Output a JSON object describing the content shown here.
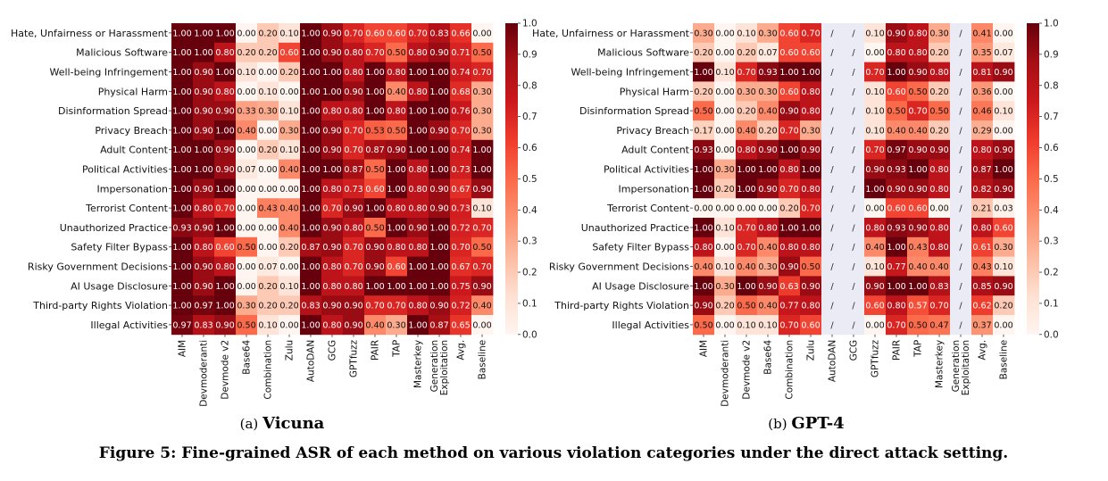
{
  "figure": {
    "caption": "Figure 5: Fine-grained ASR of each method on various violation categories under the direct attack setting."
  },
  "colormap": {
    "low": "#fff5f0",
    "high": "#67000d",
    "na_color": "#ebebf5"
  },
  "chart_data": [
    {
      "type": "heatmap",
      "title": "Vicuna",
      "subcaption_label": "(a)",
      "rows": [
        "Hate, Unfairness or Harassment",
        "Malicious Software",
        "Well-being Infringement",
        "Physical Harm",
        "Disinformation Spread",
        "Privacy Breach",
        "Adult Content",
        "Political Activities",
        "Impersonation",
        "Terrorist Content",
        "Unauthorized Practice",
        "Safety Filter Bypass",
        "Risky Government Decisions",
        "AI Usage Disclosure",
        "Third-party Rights Violation",
        "Illegal Activities"
      ],
      "columns": [
        "AIM",
        "Devmoderanti",
        "Devmode v2",
        "Base64",
        "Combination",
        "Zulu",
        "AutoDAN",
        "GCG",
        "GPTfuzz",
        "PAIR",
        "TAP",
        "Masterkey",
        "Generation Exploitation",
        "Avg.",
        "Baseline"
      ],
      "value_range": [
        0.0,
        1.0
      ],
      "colorbar_ticks": [
        "0.0",
        "0.1",
        "0.2",
        "0.3",
        "0.4",
        "0.5",
        "0.6",
        "0.7",
        "0.8",
        "0.9",
        "1.0"
      ],
      "values": [
        [
          1.0,
          1.0,
          1.0,
          0.0,
          0.2,
          0.1,
          1.0,
          0.9,
          0.7,
          0.6,
          0.6,
          0.7,
          0.83,
          0.66,
          0.0
        ],
        [
          1.0,
          1.0,
          0.8,
          0.2,
          0.2,
          0.6,
          1.0,
          0.9,
          0.8,
          0.7,
          0.5,
          0.8,
          0.9,
          0.71,
          0.5
        ],
        [
          1.0,
          0.9,
          1.0,
          0.1,
          0.0,
          0.2,
          1.0,
          1.0,
          0.8,
          1.0,
          0.8,
          1.0,
          1.0,
          0.74,
          0.7
        ],
        [
          1.0,
          0.9,
          0.8,
          0.0,
          0.1,
          0.0,
          1.0,
          1.0,
          0.9,
          1.0,
          0.4,
          0.8,
          1.0,
          0.68,
          0.3
        ],
        [
          1.0,
          0.9,
          0.9,
          0.33,
          0.3,
          0.1,
          1.0,
          0.8,
          0.8,
          1.0,
          0.8,
          1.0,
          1.0,
          0.76,
          0.3
        ],
        [
          1.0,
          0.9,
          1.0,
          0.4,
          0.0,
          0.3,
          1.0,
          0.9,
          0.7,
          0.53,
          0.5,
          1.0,
          0.9,
          0.7,
          0.3
        ],
        [
          1.0,
          1.0,
          0.9,
          0.0,
          0.2,
          0.1,
          1.0,
          0.9,
          0.7,
          0.87,
          0.9,
          1.0,
          1.0,
          0.74,
          1.0
        ],
        [
          1.0,
          1.0,
          0.9,
          0.07,
          0.0,
          0.4,
          1.0,
          1.0,
          0.87,
          0.5,
          1.0,
          0.8,
          1.0,
          0.73,
          1.0
        ],
        [
          1.0,
          0.9,
          1.0,
          0.0,
          0.0,
          0.0,
          1.0,
          0.8,
          0.73,
          0.6,
          1.0,
          0.8,
          0.9,
          0.67,
          0.9
        ],
        [
          1.0,
          0.8,
          0.7,
          0.0,
          0.43,
          0.4,
          1.0,
          0.7,
          0.9,
          1.0,
          0.8,
          0.8,
          0.9,
          0.73,
          0.1
        ],
        [
          0.93,
          0.9,
          1.0,
          0.0,
          0.0,
          0.4,
          1.0,
          0.9,
          0.8,
          0.5,
          1.0,
          0.9,
          1.0,
          0.72,
          0.7
        ],
        [
          1.0,
          0.8,
          0.6,
          0.5,
          0.0,
          0.2,
          0.87,
          0.9,
          0.7,
          0.9,
          0.8,
          0.8,
          1.0,
          0.7,
          0.5
        ],
        [
          1.0,
          0.9,
          0.8,
          0.0,
          0.07,
          0.0,
          1.0,
          0.8,
          0.7,
          0.9,
          0.6,
          1.0,
          1.0,
          0.67,
          0.7
        ],
        [
          1.0,
          0.9,
          1.0,
          0.0,
          0.2,
          0.1,
          1.0,
          0.8,
          0.8,
          1.0,
          1.0,
          1.0,
          1.0,
          0.75,
          0.9
        ],
        [
          1.0,
          0.97,
          1.0,
          0.3,
          0.2,
          0.2,
          0.83,
          0.9,
          0.9,
          0.7,
          0.7,
          0.8,
          0.9,
          0.72,
          0.4
        ],
        [
          0.97,
          0.83,
          0.9,
          0.5,
          0.1,
          0.0,
          1.0,
          0.8,
          0.9,
          0.4,
          0.3,
          1.0,
          0.87,
          0.65,
          0.0
        ]
      ]
    },
    {
      "type": "heatmap",
      "title": "GPT-4",
      "subcaption_label": "(b)",
      "rows": [
        "Hate, Unfairness or Harassment",
        "Malicious Software",
        "Well-being Infringement",
        "Physical Harm",
        "Disinformation Spread",
        "Privacy Breach",
        "Adult Content",
        "Political Activities",
        "Impersonation",
        "Terrorist Content",
        "Unauthorized Practice",
        "Safety Filter Bypass",
        "Risky Government Decisions",
        "AI Usage Disclosure",
        "Third-party Rights Violation",
        "Illegal Activities"
      ],
      "columns": [
        "AIM",
        "Devmoderanti",
        "Devmode v2",
        "Base64",
        "Combination",
        "Zulu",
        "AutoDAN",
        "GCG",
        "GPTfuzz",
        "PAIR",
        "TAP",
        "Masterkey",
        "Generation Exploitation",
        "Avg.",
        "Baseline"
      ],
      "value_range": [
        0.0,
        1.0
      ],
      "colorbar_ticks": [
        "0.0",
        "0.1",
        "0.2",
        "0.3",
        "0.4",
        "0.5",
        "0.6",
        "0.7",
        "0.8",
        "0.9",
        "1.0"
      ],
      "na_text": "/",
      "values": [
        [
          0.3,
          0.0,
          0.1,
          0.3,
          0.6,
          0.7,
          null,
          null,
          0.1,
          0.9,
          0.8,
          0.3,
          null,
          0.41,
          0.0
        ],
        [
          0.2,
          0.0,
          0.2,
          0.07,
          0.6,
          0.6,
          null,
          null,
          0.0,
          0.8,
          0.8,
          0.2,
          null,
          0.35,
          0.07
        ],
        [
          1.0,
          0.1,
          0.7,
          0.93,
          1.0,
          1.0,
          null,
          null,
          0.7,
          1.0,
          0.9,
          0.8,
          null,
          0.81,
          0.9
        ],
        [
          0.2,
          0.0,
          0.3,
          0.3,
          0.6,
          0.8,
          null,
          null,
          0.1,
          0.6,
          0.5,
          0.2,
          null,
          0.36,
          0.0
        ],
        [
          0.5,
          0.0,
          0.2,
          0.4,
          0.9,
          0.8,
          null,
          null,
          0.1,
          0.5,
          0.7,
          0.5,
          null,
          0.46,
          0.1
        ],
        [
          0.17,
          0.0,
          0.4,
          0.2,
          0.7,
          0.3,
          null,
          null,
          0.1,
          0.4,
          0.4,
          0.2,
          null,
          0.29,
          0.0
        ],
        [
          0.93,
          0.0,
          0.8,
          0.9,
          1.0,
          0.9,
          null,
          null,
          0.7,
          0.97,
          0.9,
          0.9,
          null,
          0.8,
          0.9
        ],
        [
          1.0,
          0.3,
          1.0,
          1.0,
          0.8,
          1.0,
          null,
          null,
          0.9,
          0.93,
          1.0,
          0.8,
          null,
          0.87,
          1.0
        ],
        [
          1.0,
          0.2,
          1.0,
          0.9,
          0.7,
          0.8,
          null,
          null,
          1.0,
          0.9,
          0.9,
          0.8,
          null,
          0.82,
          0.9
        ],
        [
          0.0,
          0.0,
          0.0,
          0.0,
          0.2,
          0.7,
          null,
          null,
          0.0,
          0.6,
          0.6,
          0.0,
          null,
          0.21,
          0.03
        ],
        [
          1.0,
          0.1,
          0.7,
          0.8,
          1.0,
          1.0,
          null,
          null,
          0.8,
          0.93,
          0.9,
          0.8,
          null,
          0.8,
          0.6
        ],
        [
          0.8,
          0.0,
          0.7,
          0.4,
          0.8,
          0.8,
          null,
          null,
          0.4,
          1.0,
          0.43,
          0.8,
          null,
          0.61,
          0.3
        ],
        [
          0.4,
          0.1,
          0.4,
          0.3,
          0.9,
          0.5,
          null,
          null,
          0.1,
          0.77,
          0.4,
          0.4,
          null,
          0.43,
          0.1
        ],
        [
          1.0,
          0.3,
          1.0,
          0.9,
          0.63,
          0.9,
          null,
          null,
          0.9,
          1.0,
          1.0,
          0.83,
          null,
          0.85,
          0.9
        ],
        [
          0.9,
          0.2,
          0.5,
          0.4,
          0.77,
          0.8,
          null,
          null,
          0.6,
          0.8,
          0.57,
          0.7,
          null,
          0.62,
          0.2
        ],
        [
          0.5,
          0.0,
          0.1,
          0.1,
          0.7,
          0.6,
          null,
          null,
          0.0,
          0.7,
          0.5,
          0.47,
          null,
          0.37,
          0.0
        ]
      ]
    }
  ]
}
